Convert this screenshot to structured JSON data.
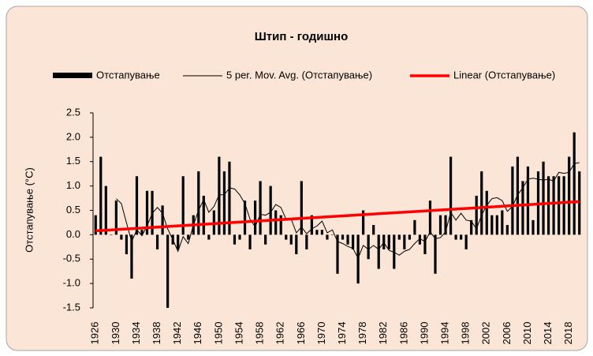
{
  "chart_data": {
    "type": "bar",
    "title": "Штип - годишно",
    "y_label": "Отстапување (°C)",
    "x": [
      1926,
      1927,
      1928,
      1929,
      1930,
      1931,
      1932,
      1933,
      1934,
      1935,
      1936,
      1937,
      1938,
      1939,
      1940,
      1941,
      1942,
      1943,
      1944,
      1945,
      1946,
      1947,
      1948,
      1949,
      1950,
      1951,
      1952,
      1953,
      1954,
      1955,
      1956,
      1957,
      1958,
      1959,
      1960,
      1961,
      1962,
      1963,
      1964,
      1965,
      1966,
      1967,
      1968,
      1969,
      1970,
      1971,
      1972,
      1973,
      1974,
      1975,
      1976,
      1977,
      1978,
      1979,
      1980,
      1981,
      1982,
      1983,
      1984,
      1985,
      1986,
      1987,
      1988,
      1989,
      1990,
      1991,
      1992,
      1993,
      1994,
      1995,
      1996,
      1997,
      1998,
      1999,
      2000,
      2001,
      2002,
      2003,
      2004,
      2005,
      2006,
      2007,
      2008,
      2009,
      2010,
      2011,
      2012,
      2013,
      2014,
      2015,
      2016,
      2017,
      2018,
      2019,
      2020
    ],
    "series": [
      {
        "name": "Отстапување",
        "type": "bar",
        "color": "#000000",
        "values": [
          0.4,
          1.6,
          1.0,
          0.0,
          0.7,
          -0.1,
          -0.4,
          -0.9,
          1.2,
          0.1,
          0.9,
          0.9,
          -0.3,
          0.6,
          -1.5,
          -0.2,
          -0.3,
          1.2,
          -0.1,
          0.4,
          1.3,
          0.8,
          -0.1,
          0.5,
          1.6,
          1.3,
          1.5,
          -0.2,
          -0.1,
          0.7,
          -0.3,
          0.7,
          1.1,
          -0.2,
          1.0,
          0.5,
          0.4,
          -0.1,
          -0.2,
          -0.4,
          1.1,
          -0.3,
          0.4,
          0.1,
          0.1,
          -0.1,
          0.0,
          -0.8,
          -0.1,
          -0.2,
          -0.3,
          -1.0,
          0.5,
          -0.5,
          0.2,
          -0.7,
          -0.3,
          -0.3,
          -0.7,
          -0.1,
          -0.3,
          -0.1,
          0.3,
          -0.2,
          -0.4,
          0.7,
          -0.8,
          0.4,
          0.4,
          1.6,
          -0.1,
          -0.1,
          -0.3,
          0.3,
          0.8,
          1.3,
          0.9,
          0.4,
          0.4,
          0.5,
          0.2,
          1.4,
          1.6,
          1.1,
          1.4,
          0.3,
          1.3,
          1.5,
          1.2,
          1.2,
          1.2,
          1.2,
          1.6,
          2.1,
          1.3
        ]
      },
      {
        "name": "5 per. Mov. Avg. (Отстапување)",
        "type": "line",
        "color": "#000000",
        "values": [
          null,
          null,
          null,
          null,
          0.74,
          0.64,
          0.24,
          -0.14,
          0.1,
          -0.02,
          0.18,
          0.44,
          0.56,
          0.44,
          0.12,
          -0.1,
          -0.34,
          -0.04,
          -0.18,
          0.2,
          0.5,
          0.72,
          0.46,
          0.58,
          0.82,
          0.82,
          0.96,
          0.94,
          0.82,
          0.64,
          0.32,
          0.16,
          0.42,
          0.4,
          0.46,
          0.62,
          0.56,
          0.32,
          0.32,
          0.04,
          0.16,
          0.02,
          0.12,
          0.18,
          0.28,
          0.04,
          0.1,
          -0.14,
          -0.18,
          -0.24,
          -0.28,
          -0.48,
          -0.22,
          -0.3,
          -0.22,
          -0.3,
          -0.16,
          -0.32,
          -0.36,
          -0.42,
          -0.34,
          -0.3,
          -0.18,
          -0.08,
          -0.14,
          0.06,
          -0.08,
          -0.06,
          0.06,
          0.46,
          0.3,
          0.44,
          0.3,
          0.28,
          0.12,
          0.4,
          0.6,
          0.74,
          0.76,
          0.7,
          0.48,
          0.58,
          0.82,
          0.96,
          1.14,
          1.16,
          1.14,
          1.12,
          1.14,
          1.1,
          1.28,
          1.26,
          1.28,
          1.46,
          1.48
        ]
      }
    ],
    "trend": {
      "name": "Linear (Отстапување)",
      "color": "#ff0000",
      "x": [
        1926,
        2020
      ],
      "values": [
        0.08,
        0.68
      ]
    },
    "xlim": [
      1925.5,
      2020.5
    ],
    "xticks": [
      1926,
      1930,
      1934,
      1938,
      1942,
      1946,
      1950,
      1954,
      1958,
      1962,
      1966,
      1970,
      1974,
      1978,
      1982,
      1986,
      1990,
      1994,
      1998,
      2002,
      2006,
      2010,
      2014,
      2018
    ],
    "ylim": [
      -1.5,
      2.5
    ],
    "yticks": [
      {
        "value": -1.5,
        "label": "-1.5"
      },
      {
        "value": -1,
        "label": "-1.0"
      },
      {
        "value": -0.5,
        "label": "-0.5"
      },
      {
        "value": 0,
        "label": "0.0"
      },
      {
        "value": 0.5,
        "label": "0.5"
      },
      {
        "value": 1,
        "label": "1.0"
      },
      {
        "value": 1.5,
        "label": "1.5"
      },
      {
        "value": 2,
        "label": "2.0"
      },
      {
        "value": 2.5,
        "label": "2.5"
      }
    ],
    "grid": false,
    "legend": "top"
  }
}
